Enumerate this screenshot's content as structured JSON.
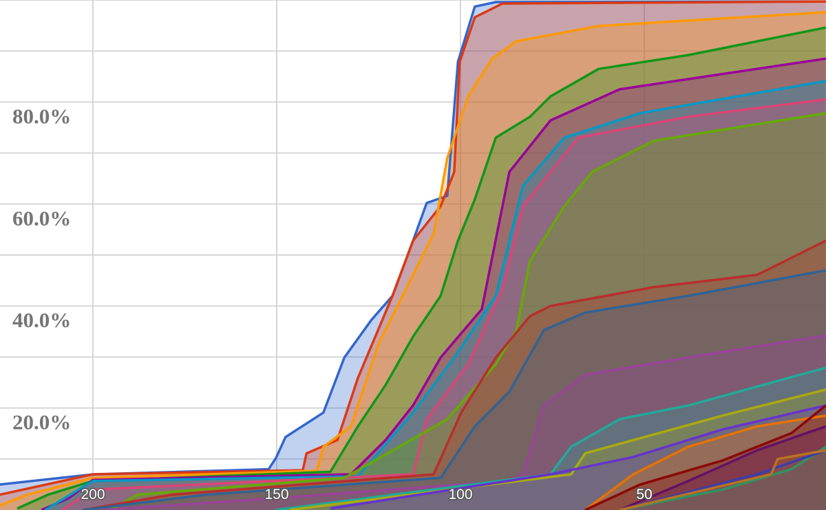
{
  "chart_data": {
    "type": "area",
    "title": "",
    "xlabel": "",
    "ylabel": "",
    "x_reversed": true,
    "xlim": [
      225,
      0
    ],
    "ylim": [
      0,
      100
    ],
    "grid": true,
    "y_ticks": [
      {
        "value": 20,
        "label": "20.0%"
      },
      {
        "value": 40,
        "label": "40.0%"
      },
      {
        "value": 60,
        "label": "60.0%"
      },
      {
        "value": 80,
        "label": "80.0%"
      }
    ],
    "x_ticks": [
      {
        "value": 200,
        "label": "200"
      },
      {
        "value": 150,
        "label": "150"
      },
      {
        "value": 100,
        "label": "100"
      },
      {
        "value": 50,
        "label": "50"
      }
    ],
    "series": [
      {
        "color": "#3366cc",
        "points": [
          [
            225.3,
            5
          ],
          [
            200,
            7
          ],
          [
            152.2,
            8
          ],
          [
            150.2,
            10.2
          ],
          [
            147.6,
            14.3
          ],
          [
            137.3,
            19.1
          ],
          [
            131.6,
            29.9
          ],
          [
            124.2,
            37.3
          ],
          [
            118.5,
            42
          ],
          [
            112.9,
            52.8
          ],
          [
            109.2,
            60.2
          ],
          [
            103.6,
            61.6
          ],
          [
            100.7,
            87.9
          ],
          [
            96.1,
            98.7
          ],
          [
            90.4,
            99.6
          ],
          [
            0.6,
            99.7
          ]
        ]
      },
      {
        "color": "#dc3912",
        "points": [
          [
            225.3,
            3
          ],
          [
            200,
            7
          ],
          [
            142.9,
            7.8
          ],
          [
            141.9,
            11.1
          ],
          [
            133.5,
            13.7
          ],
          [
            127.9,
            25.9
          ],
          [
            118.5,
            42
          ],
          [
            112.9,
            52.8
          ],
          [
            105.4,
            59.6
          ],
          [
            101.7,
            66.3
          ],
          [
            100.2,
            87.9
          ],
          [
            96.1,
            96.6
          ],
          [
            88.6,
            99.3
          ],
          [
            0.6,
            99.7
          ]
        ]
      },
      {
        "color": "#ff9900",
        "points": [
          [
            225.3,
            0.9
          ],
          [
            217.8,
            3
          ],
          [
            200,
            6.3
          ],
          [
            139.1,
            7.7
          ],
          [
            137.3,
            12.4
          ],
          [
            129.8,
            16.4
          ],
          [
            122.3,
            32.6
          ],
          [
            114.8,
            43.4
          ],
          [
            107.3,
            54.2
          ],
          [
            103.6,
            69
          ],
          [
            97.9,
            81.1
          ],
          [
            91.4,
            88.5
          ],
          [
            84.8,
            91.9
          ],
          [
            62.4,
            94.9
          ],
          [
            0.6,
            97.6
          ]
        ]
      },
      {
        "color": "#109618",
        "points": [
          [
            220.6,
            0.3
          ],
          [
            212.2,
            3
          ],
          [
            200,
            5.7
          ],
          [
            135.4,
            7.5
          ],
          [
            127.9,
            16.4
          ],
          [
            120.4,
            24.5
          ],
          [
            112.9,
            34
          ],
          [
            105.4,
            42
          ],
          [
            100.7,
            52.8
          ],
          [
            96.1,
            60.9
          ],
          [
            90.4,
            73
          ],
          [
            81.1,
            77.1
          ],
          [
            75.5,
            81.1
          ],
          [
            62.4,
            86.5
          ],
          [
            38,
            89.2
          ],
          [
            0.6,
            94.6
          ]
        ]
      },
      {
        "color": "#990099",
        "points": [
          [
            214,
            0
          ],
          [
            206.6,
            2.3
          ],
          [
            200,
            5.9
          ],
          [
            129.8,
            7
          ],
          [
            120.4,
            13.7
          ],
          [
            112.9,
            20.5
          ],
          [
            105.4,
            29.9
          ],
          [
            94.2,
            39.4
          ],
          [
            86.7,
            66.3
          ],
          [
            75.5,
            76.4
          ],
          [
            56.7,
            82.5
          ],
          [
            0.6,
            88.5
          ]
        ]
      },
      {
        "color": "#0099c6",
        "points": [
          [
            213,
            0
          ],
          [
            200,
            5.7
          ],
          [
            127.9,
            6.6
          ],
          [
            112.9,
            19.1
          ],
          [
            101.7,
            29.9
          ],
          [
            90.4,
            42
          ],
          [
            83,
            63.6
          ],
          [
            71.7,
            73
          ],
          [
            51.1,
            77.8
          ],
          [
            0.6,
            84.1
          ]
        ]
      },
      {
        "color": "#dd4477",
        "points": [
          [
            208.4,
            0
          ],
          [
            200,
            4
          ],
          [
            112.9,
            7
          ],
          [
            109.2,
            17.8
          ],
          [
            97.9,
            28.6
          ],
          [
            88.6,
            43.4
          ],
          [
            83,
            59.6
          ],
          [
            68,
            73
          ],
          [
            38,
            77.1
          ],
          [
            0.6,
            80.5
          ]
        ]
      },
      {
        "color": "#66aa00",
        "points": [
          [
            195.3,
            0
          ],
          [
            187.8,
            3
          ],
          [
            131.6,
            6.3
          ],
          [
            103.6,
            17.8
          ],
          [
            90.4,
            28.6
          ],
          [
            84.8,
            35.3
          ],
          [
            81.1,
            48.8
          ],
          [
            71.7,
            59.6
          ],
          [
            64.2,
            66.3
          ],
          [
            47.4,
            72.4
          ],
          [
            0.6,
            77.8
          ]
        ]
      },
      {
        "color": "#b82e2e",
        "points": [
          [
            202.8,
            0
          ],
          [
            178.5,
            3
          ],
          [
            107.3,
            7
          ],
          [
            99.8,
            19.1
          ],
          [
            90.4,
            29.9
          ],
          [
            81.1,
            38
          ],
          [
            75.5,
            40
          ],
          [
            47.4,
            43.7
          ],
          [
            19.3,
            46.1
          ],
          [
            0.6,
            52.8
          ]
        ]
      },
      {
        "color": "#316395",
        "points": [
          [
            202.8,
            0
          ],
          [
            169.1,
            3
          ],
          [
            105.4,
            6.3
          ],
          [
            96.1,
            16.4
          ],
          [
            86.7,
            23.2
          ],
          [
            77.3,
            35.3
          ],
          [
            66.1,
            38.7
          ],
          [
            38,
            42
          ],
          [
            0.6,
            47
          ]
        ]
      },
      {
        "color": "#994499",
        "points": [
          [
            197.2,
            0
          ],
          [
            150.2,
            2.3
          ],
          [
            86.7,
            5.7
          ],
          [
            83,
            7
          ],
          [
            77.3,
            20.5
          ],
          [
            66.1,
            26.5
          ],
          [
            38,
            29.9
          ],
          [
            0.6,
            34.2
          ]
        ]
      },
      {
        "color": "#22aa99",
        "points": [
          [
            150.2,
            0
          ],
          [
            75.5,
            7
          ],
          [
            69.9,
            12.4
          ],
          [
            56.7,
            17.8
          ],
          [
            38,
            20.5
          ],
          [
            0.6,
            27.9
          ]
        ]
      },
      {
        "color": "#aaaa11",
        "points": [
          [
            146.6,
            0
          ],
          [
            69.9,
            7
          ],
          [
            66.1,
            11.1
          ],
          [
            53,
            13.7
          ],
          [
            28.7,
            18.5
          ],
          [
            0.6,
            23.6
          ]
        ]
      },
      {
        "color": "#6633cc",
        "points": [
          [
            135.4,
            0.3
          ],
          [
            75.5,
            7
          ],
          [
            53,
            10.4
          ],
          [
            28.7,
            15.8
          ],
          [
            0.6,
            20.5
          ]
        ]
      },
      {
        "color": "#e67300",
        "points": [
          [
            66.1,
            0
          ],
          [
            53,
            7
          ],
          [
            38,
            12.4
          ],
          [
            19.3,
            16.4
          ],
          [
            0.6,
            18.5
          ]
        ]
      },
      {
        "color": "#8b0707",
        "points": [
          [
            66.1,
            0
          ],
          [
            51.1,
            5
          ],
          [
            28.7,
            9.7
          ],
          [
            9.9,
            15.1
          ],
          [
            0.6,
            20.5
          ]
        ]
      },
      {
        "color": "#651067",
        "points": [
          [
            56.7,
            0
          ],
          [
            38,
            5.7
          ],
          [
            19.3,
            11.7
          ],
          [
            0.6,
            16.4
          ]
        ]
      },
      {
        "color": "#329262",
        "points": [
          [
            56.7,
            0
          ],
          [
            28.7,
            4
          ],
          [
            9.9,
            8
          ],
          [
            0.6,
            12.4
          ]
        ]
      },
      {
        "color": "#3b3eac",
        "points": [
          [
            56.7,
            0
          ],
          [
            19.3,
            7
          ],
          [
            0.6,
            11.7
          ]
        ]
      },
      {
        "color": "#b77322",
        "points": [
          [
            56.7,
            0
          ],
          [
            15.5,
            7
          ],
          [
            13.7,
            10
          ],
          [
            0.6,
            11.7
          ]
        ]
      }
    ]
  }
}
